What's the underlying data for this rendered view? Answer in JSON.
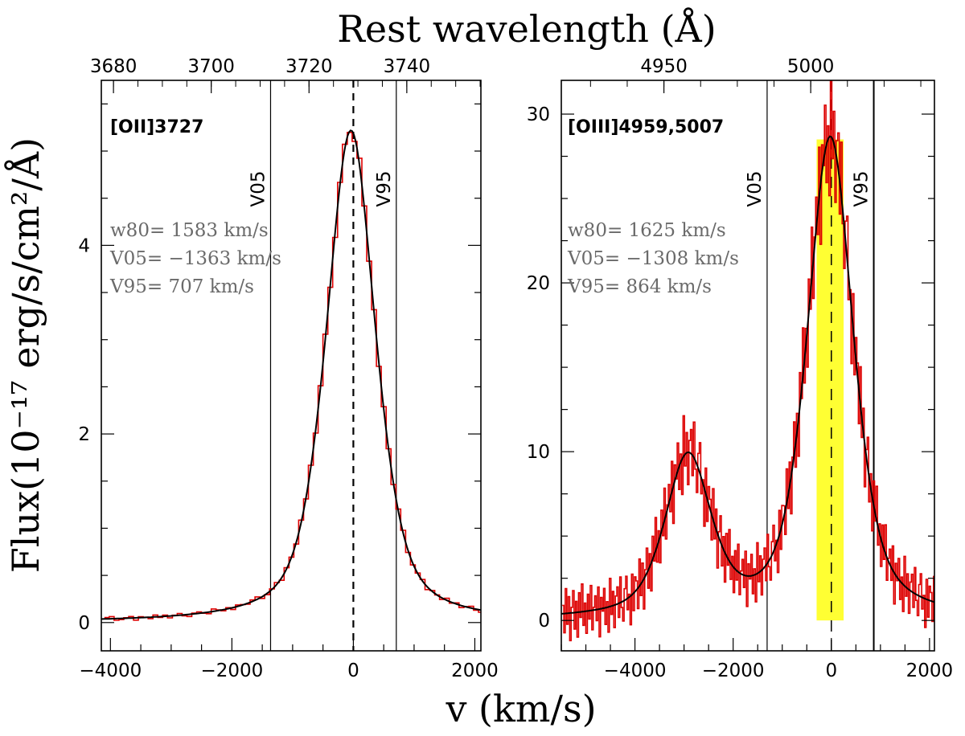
{
  "figure": {
    "top_title": "Rest wavelength (Å)",
    "xlabel": "v (km/s)",
    "ylabel": "Flux(10⁻¹⁷ erg/s/cm²/Å)"
  },
  "chart_data": [
    {
      "type": "line",
      "name": "OII panel",
      "panel_label": "[OII]3727",
      "xlim": [
        -4150,
        2100
      ],
      "ylim": [
        -0.3,
        5.75
      ],
      "x_ticks": [
        -4000,
        -2000,
        0,
        2000
      ],
      "x_tick_labels": [
        "−4000",
        "−2000",
        "0",
        "2000"
      ],
      "y_ticks": [
        0,
        2,
        4
      ],
      "y_tick_labels": [
        "0",
        "2",
        "4"
      ],
      "top_ticks": [
        {
          "label": "3680",
          "v": -3950
        },
        {
          "label": "3700",
          "v": -2340
        },
        {
          "label": "3720",
          "v": -730
        },
        {
          "label": "3740",
          "v": 880
        }
      ],
      "markers": [
        {
          "label": "V05",
          "v": -1363
        },
        {
          "label": "V95",
          "v": 707
        }
      ],
      "stats": [
        "w80= 1583 km/s",
        "V05= −1363 km/s",
        "V95= 707 km/s"
      ],
      "model_components": [
        {
          "amp": 5.22,
          "center": -40,
          "gamma": 470,
          "sigma": 420
        }
      ],
      "data_series": {
        "name": "observed spectrum",
        "color": "#dd0000",
        "x_start": -4100,
        "x_step": 80,
        "noise": [
          0.14,
          0.22,
          -0.18,
          -0.12,
          0.05,
          0.16,
          -0.24,
          0.1,
          0.02,
          -0.15,
          0.2,
          -0.08,
          0.12,
          -0.2,
          0.04,
          0.18,
          -0.1,
          -0.22,
          0.08,
          0.15,
          -0.05,
          -0.17,
          0.24,
          0.06,
          -0.12,
          0.1,
          -0.2,
          0.13,
          0.03,
          -0.09
        ],
        "noise_scale": 0.1,
        "noise_rel": 0.035
      }
    },
    {
      "type": "line",
      "name": "OIII panel",
      "panel_label": "[OIII]4959,5007",
      "xlim": [
        -5500,
        2100
      ],
      "ylim": [
        -1.8,
        32.0
      ],
      "x_ticks": [
        -4000,
        -2000,
        0,
        2000
      ],
      "x_tick_labels": [
        "−4000",
        "−2000",
        "0",
        "2000"
      ],
      "y_ticks": [
        0,
        10,
        20,
        30
      ],
      "y_tick_labels": [
        "0",
        "10",
        "20",
        "30"
      ],
      "top_ticks": [
        {
          "label": "4950",
          "v": -3410
        },
        {
          "label": "5000",
          "v": -420
        }
      ],
      "markers": [
        {
          "label": "V05",
          "v": -1308
        },
        {
          "label": "V95",
          "v": 864
        }
      ],
      "stats": [
        "w80= 1625 km/s",
        "V05= −1308 km/s",
        "V95= 864 km/s"
      ],
      "highlight_band": {
        "x": [
          -300,
          250
        ],
        "y": [
          0,
          28.5
        ],
        "color": "#ffff33"
      },
      "model_components": [
        {
          "amp": 28.5,
          "center": -20,
          "gamma": 560,
          "sigma": 470
        },
        {
          "amp": 9.4,
          "center": -2920,
          "gamma": 560,
          "sigma": 470
        }
      ],
      "data_series": {
        "name": "observed spectrum",
        "color": "#dd0000",
        "x_start": -5480,
        "x_step": 30,
        "noise": [
          0.3,
          -0.7,
          0.9,
          -0.4,
          0.6,
          -1.0,
          0.2,
          0.8,
          -0.6,
          0.4,
          -0.9,
          0.7,
          -0.2,
          1.0,
          -0.5,
          0.3,
          -0.8,
          0.6,
          -0.3,
          0.9,
          -0.7,
          0.1,
          0.5,
          -0.4,
          0.8,
          -1.0,
          0.4,
          -0.1,
          0.7,
          -0.6,
          0.2,
          -0.9,
          1.0,
          -0.3,
          0.5,
          -0.8,
          0.3,
          0.6,
          -0.5,
          0.9,
          -0.2,
          -0.7,
          0.4,
          0.8,
          -0.4,
          0.1,
          -1.0,
          0.7,
          -0.6,
          0.5
        ],
        "noise_scale": 1.6,
        "noise_rel": 0.08
      }
    }
  ]
}
